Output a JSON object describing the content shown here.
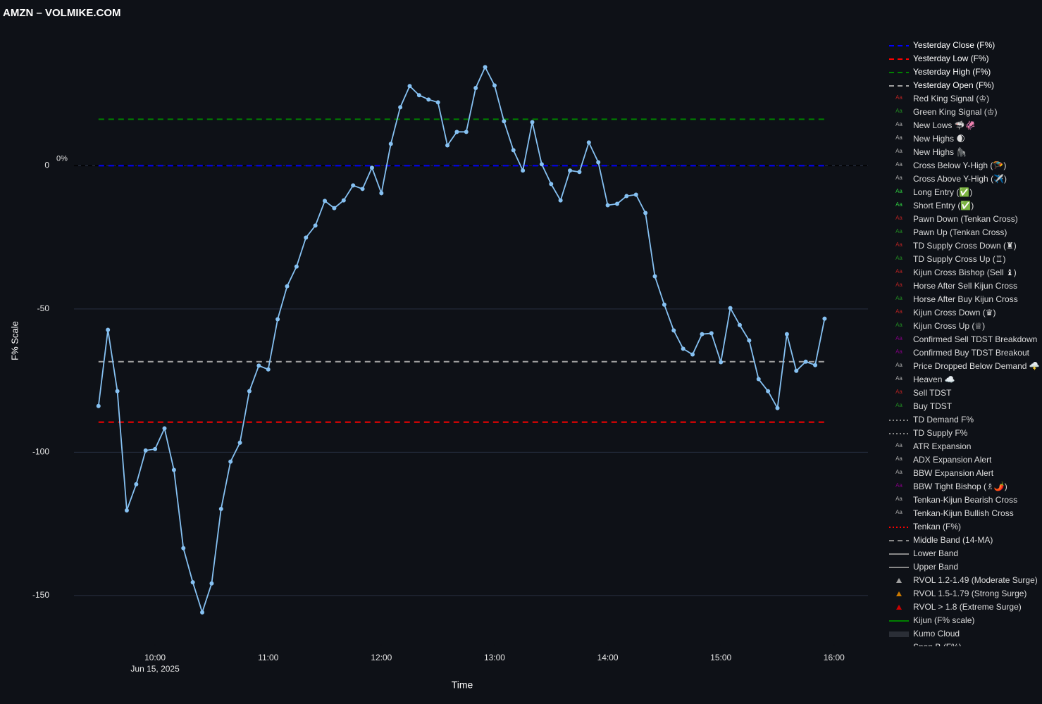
{
  "chart_data": {
    "type": "line",
    "title": "AMZN – VOLMIKE.COM",
    "x_label": "Time",
    "y_label": "F% Scale",
    "x_date_label": "Jun 15, 2025",
    "xlim": [
      "2025-06-15 09:17",
      "2025-06-15 16:18"
    ],
    "xticks": [
      {
        "value": "2025-06-15 10:00",
        "label": "10:00"
      },
      {
        "value": "2025-06-15 11:00",
        "label": "11:00"
      },
      {
        "value": "2025-06-15 12:00",
        "label": "12:00"
      },
      {
        "value": "2025-06-15 13:00",
        "label": "13:00"
      },
      {
        "value": "2025-06-15 14:00",
        "label": "14:00"
      },
      {
        "value": "2025-06-15 15:00",
        "label": "15:00"
      },
      {
        "value": "2025-06-15 16:00",
        "label": "16:00"
      }
    ],
    "ylim": [
      -167,
      48
    ],
    "yticks": [
      -150,
      -100,
      -50,
      0
    ],
    "grid": true,
    "zero_line": {
      "value": 0,
      "label": "0%",
      "color": "#000000"
    },
    "x": [
      "2025-06-15 09:30",
      "2025-06-15 09:35",
      "2025-06-15 09:40",
      "2025-06-15 09:45",
      "2025-06-15 09:50",
      "2025-06-15 09:55",
      "2025-06-15 10:00",
      "2025-06-15 10:05",
      "2025-06-15 10:10",
      "2025-06-15 10:15",
      "2025-06-15 10:20",
      "2025-06-15 10:25",
      "2025-06-15 10:30",
      "2025-06-15 10:35",
      "2025-06-15 10:40",
      "2025-06-15 10:45",
      "2025-06-15 10:50",
      "2025-06-15 10:55",
      "2025-06-15 11:00",
      "2025-06-15 11:05",
      "2025-06-15 11:10",
      "2025-06-15 11:15",
      "2025-06-15 11:20",
      "2025-06-15 11:25",
      "2025-06-15 11:30",
      "2025-06-15 11:35",
      "2025-06-15 11:40",
      "2025-06-15 11:45",
      "2025-06-15 11:50",
      "2025-06-15 11:55",
      "2025-06-15 12:00",
      "2025-06-15 12:05",
      "2025-06-15 12:10",
      "2025-06-15 12:15",
      "2025-06-15 12:20",
      "2025-06-15 12:25",
      "2025-06-15 12:30",
      "2025-06-15 12:35",
      "2025-06-15 12:40",
      "2025-06-15 12:45",
      "2025-06-15 12:50",
      "2025-06-15 12:55",
      "2025-06-15 13:00",
      "2025-06-15 13:05",
      "2025-06-15 13:10",
      "2025-06-15 13:15",
      "2025-06-15 13:20",
      "2025-06-15 13:25",
      "2025-06-15 13:30",
      "2025-06-15 13:35",
      "2025-06-15 13:40",
      "2025-06-15 13:45",
      "2025-06-15 13:50",
      "2025-06-15 13:55",
      "2025-06-15 14:00",
      "2025-06-15 14:05",
      "2025-06-15 14:10",
      "2025-06-15 14:15",
      "2025-06-15 14:20",
      "2025-06-15 14:25",
      "2025-06-15 14:30",
      "2025-06-15 14:35",
      "2025-06-15 14:40",
      "2025-06-15 14:45",
      "2025-06-15 14:50",
      "2025-06-15 14:55",
      "2025-06-15 15:00",
      "2025-06-15 15:05",
      "2025-06-15 15:10",
      "2025-06-15 15:15",
      "2025-06-15 15:20",
      "2025-06-15 15:25",
      "2025-06-15 15:30",
      "2025-06-15 15:35",
      "2025-06-15 15:40",
      "2025-06-15 15:45",
      "2025-06-15 15:50",
      "2025-06-15 15:55"
    ],
    "series": [
      {
        "color": "#86c1f2",
        "values": [
          -83.9,
          -57.3,
          -78.7,
          -120.3,
          -111.2,
          -99.4,
          -98.9,
          -91.7,
          -106.2,
          -133.5,
          -145.4,
          -155.9,
          -145.8,
          -119.8,
          -103.3,
          -96.7,
          -78.7,
          -69.8,
          -71.1,
          -53.6,
          -42.1,
          -35.2,
          -25.1,
          -20.9,
          -12.3,
          -14.8,
          -12.1,
          -6.9,
          -8.1,
          -0.7,
          -9.6,
          7.6,
          20.4,
          27.8,
          24.6,
          23.1,
          22.1,
          7.1,
          11.8,
          11.8,
          27.1,
          34.4,
          28.0,
          15.5,
          5.4,
          -1.7,
          15.2,
          0.5,
          -6.4,
          -12.1,
          -1.7,
          -2.2,
          8.1,
          1.2,
          -13.8,
          -13.3,
          -10.6,
          -10.1,
          -16.5,
          -38.6,
          -48.5,
          -57.5,
          -63.9,
          -65.9,
          -58.8,
          -58.5,
          -68.6,
          -49.7,
          -55.6,
          -61.0,
          -74.5,
          -78.7,
          -84.6,
          -58.8,
          -71.6,
          -68.4,
          -69.6,
          -53.4
        ]
      }
    ],
    "hlines": [
      {
        "name": "Yesterday Close (F%)",
        "color": "#0000ff",
        "value": 0
      },
      {
        "name": "Yesterday Low (F%)",
        "color": "#ff0000",
        "value": -89.5
      },
      {
        "name": "Yesterday High (F%)",
        "color": "#008000",
        "value": 16.2
      },
      {
        "name": "Yesterday Open (F%)",
        "color": "#a0a0a0",
        "value": -68.4
      }
    ],
    "legend_symbol_text": "Aa",
    "legend_items": [
      {
        "name": "Red King Signal (♔)",
        "symbol": "text",
        "color": "#b22222"
      },
      {
        "name": "Green King Signal (♔)",
        "symbol": "text",
        "color": "#228b22"
      },
      {
        "name": "New Lows 🦈🦑",
        "symbol": "text",
        "color": "#aaaaaa"
      },
      {
        "name": "New Highs 🌒",
        "symbol": "text",
        "color": "#aaaaaa"
      },
      {
        "name": "New Highs 🦍",
        "symbol": "text",
        "color": "#aaaaaa"
      },
      {
        "name": "Cross Below Y-High (🪂)",
        "symbol": "text",
        "color": "#aaaaaa"
      },
      {
        "name": "Cross Above Y-High (✈️)",
        "symbol": "text",
        "color": "#aaaaaa"
      },
      {
        "name": "Long Entry (✅)",
        "symbol": "text",
        "color": "#2ecc40"
      },
      {
        "name": "Short Entry (✅)",
        "symbol": "text",
        "color": "#2ecc40"
      },
      {
        "name": "Pawn Down (Tenkan Cross)",
        "symbol": "text",
        "color": "#b22222"
      },
      {
        "name": "Pawn Up (Tenkan Cross)",
        "symbol": "text",
        "color": "#228b22"
      },
      {
        "name": "TD Supply Cross Down (♜)",
        "symbol": "text",
        "color": "#b22222"
      },
      {
        "name": "TD Supply Cross Up (♖)",
        "symbol": "text",
        "color": "#228b22"
      },
      {
        "name": "Kijun Cross Bishop (Sell ♝)",
        "symbol": "text",
        "color": "#b22222"
      },
      {
        "name": "Horse After Sell Kijun Cross",
        "symbol": "text",
        "color": "#b22222"
      },
      {
        "name": "Horse After Buy Kijun Cross",
        "symbol": "text",
        "color": "#228b22"
      },
      {
        "name": "Kijun Cross Down (♛)",
        "symbol": "text",
        "color": "#b22222"
      },
      {
        "name": "Kijun Cross Up (♕)",
        "symbol": "text",
        "color": "#228b22"
      },
      {
        "name": "Confirmed Sell TDST Breakdown",
        "symbol": "text",
        "color": "#800080"
      },
      {
        "name": "Confirmed Buy TDST Breakout",
        "symbol": "text",
        "color": "#800080"
      },
      {
        "name": "Price Dropped Below Demand 🌩️",
        "symbol": "text",
        "color": "#aaaaaa"
      },
      {
        "name": "Heaven ☁️",
        "symbol": "text",
        "color": "#aaaaaa"
      },
      {
        "name": "Sell TDST",
        "symbol": "text",
        "color": "#b22222"
      },
      {
        "name": "Buy TDST",
        "symbol": "text",
        "color": "#228b22"
      },
      {
        "name": "TD Demand F%",
        "symbol": "dot",
        "color": "#888888"
      },
      {
        "name": "TD Supply F%",
        "symbol": "dot",
        "color": "#888888"
      },
      {
        "name": "ATR Expansion",
        "symbol": "text",
        "color": "#aaaaaa"
      },
      {
        "name": "ADX Expansion Alert",
        "symbol": "text",
        "color": "#aaaaaa"
      },
      {
        "name": "BBW Expansion Alert",
        "symbol": "text",
        "color": "#aaaaaa"
      },
      {
        "name": "BBW Tight Bishop (♗🌶️)",
        "symbol": "text",
        "color": "#800080"
      },
      {
        "name": "Tenkan-Kijun Bearish Cross",
        "symbol": "text",
        "color": "#aaaaaa"
      },
      {
        "name": "Tenkan-Kijun Bullish Cross",
        "symbol": "text",
        "color": "#aaaaaa"
      },
      {
        "name": "Tenkan (F%)",
        "symbol": "dot",
        "color": "#ff0000"
      },
      {
        "name": "Middle Band (14-MA)",
        "symbol": "dash",
        "color": "#888888"
      },
      {
        "name": "Lower Band",
        "symbol": "solid",
        "color": "#888888"
      },
      {
        "name": "Upper Band",
        "symbol": "solid",
        "color": "#888888"
      },
      {
        "name": "RVOL 1.2-1.49 (Moderate Surge)",
        "symbol": "triangle",
        "color": "#a0a0a0"
      },
      {
        "name": "RVOL 1.5-1.79 (Strong Surge)",
        "symbol": "triangle",
        "color": "#cc7a00"
      },
      {
        "name": "RVOL > 1.8 (Extreme Surge)",
        "symbol": "triangle",
        "color": "#cc0000"
      },
      {
        "name": "Kijun (F% scale)",
        "symbol": "solid",
        "color": "#008000"
      },
      {
        "name": "Kumo Cloud",
        "symbol": "band",
        "color": "#2a2e36"
      },
      {
        "name": "Span B (F%)",
        "symbol": "solid",
        "color": "#555555"
      }
    ]
  }
}
